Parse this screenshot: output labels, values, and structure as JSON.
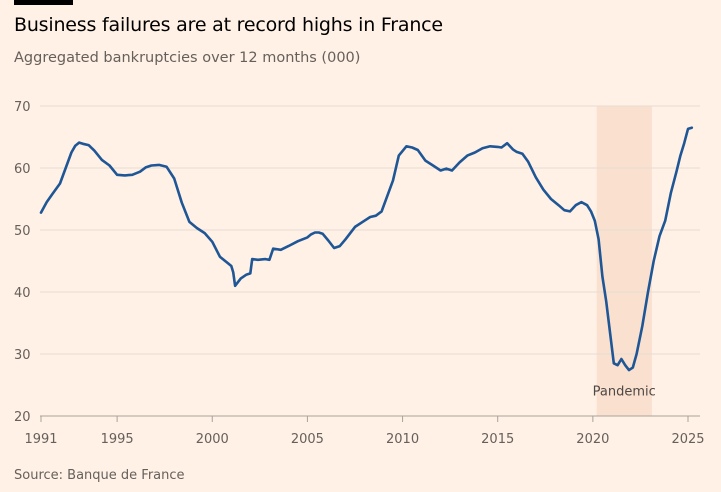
{
  "header": {
    "title": "Business failures are at record highs in France",
    "subtitle": "Aggregated bankruptcies over 12 months (000)"
  },
  "footer": {
    "source": "Source: Banque de France"
  },
  "colors": {
    "background": "#FFF1E5",
    "line": "#1F5696",
    "shade": "#FAE0CF",
    "grid": "#E7DCD2",
    "tick_text": "#66605C"
  },
  "chart_data": {
    "type": "line",
    "title": "Business failures are at record highs in France",
    "subtitle": "Aggregated bankruptcies over 12 months (000)",
    "xlabel": "",
    "ylabel": "",
    "xlim": [
      1991,
      2025.3
    ],
    "ylim": [
      20,
      70
    ],
    "grid": true,
    "x_ticks": [
      1991,
      1995,
      2000,
      2005,
      2010,
      2015,
      2020,
      2025
    ],
    "y_ticks": [
      20,
      30,
      40,
      50,
      60,
      70
    ],
    "shaded_region": {
      "x_start": 2020.2,
      "x_end": 2023.1,
      "label": "Pandemic"
    },
    "series": [
      {
        "x": [
          1991.0,
          1991.3,
          1991.6,
          1992.0,
          1992.3,
          1992.6,
          1992.8,
          1993.0,
          1993.2,
          1993.5,
          1993.8,
          1994.2,
          1994.6,
          1995.0,
          1995.4,
          1995.8,
          1996.2,
          1996.5,
          1996.8,
          1997.2,
          1997.6,
          1998.0,
          1998.4,
          1998.8,
          1999.2,
          1999.6,
          2000.0,
          2000.4,
          2000.8,
          2001.0,
          2001.1,
          2001.2,
          2001.5,
          2001.8,
          2002.0,
          2002.1,
          2002.4,
          2002.8,
          2003.0,
          2003.2,
          2003.6,
          2004.0,
          2004.5,
          2005.0,
          2005.2,
          2005.4,
          2005.6,
          2005.8,
          2006.1,
          2006.4,
          2006.7,
          2007.0,
          2007.5,
          2008.0,
          2008.3,
          2008.6,
          2008.9,
          2009.2,
          2009.5,
          2009.8,
          2010.2,
          2010.5,
          2010.8,
          2011.2,
          2011.6,
          2012.0,
          2012.3,
          2012.6,
          2013.0,
          2013.4,
          2013.8,
          2014.2,
          2014.6,
          2015.0,
          2015.2,
          2015.5,
          2015.8,
          2016.0,
          2016.3,
          2016.6,
          2017.0,
          2017.4,
          2017.8,
          2018.2,
          2018.5,
          2018.8,
          2019.1,
          2019.4,
          2019.7,
          2019.9,
          2020.1,
          2020.3,
          2020.5,
          2020.7,
          2020.9,
          2021.1,
          2021.3,
          2021.5,
          2021.7,
          2021.9,
          2022.1,
          2022.3,
          2022.6,
          2022.9,
          2023.2,
          2023.5,
          2023.8,
          2024.1,
          2024.4,
          2024.6,
          2024.8,
          2025.0,
          2025.2
        ],
        "values": [
          52.8,
          54.5,
          55.8,
          57.5,
          60.0,
          62.5,
          63.6,
          64.1,
          63.9,
          63.7,
          62.8,
          61.3,
          60.4,
          58.9,
          58.8,
          58.9,
          59.4,
          60.1,
          60.4,
          60.5,
          60.2,
          58.3,
          54.4,
          51.3,
          50.3,
          49.5,
          48.1,
          45.7,
          44.7,
          44.2,
          43.2,
          41.0,
          42.2,
          42.8,
          43.0,
          45.3,
          45.2,
          45.3,
          45.2,
          47.0,
          46.8,
          47.4,
          48.2,
          48.8,
          49.3,
          49.6,
          49.6,
          49.4,
          48.3,
          47.1,
          47.4,
          48.5,
          50.5,
          51.5,
          52.1,
          52.3,
          53.0,
          55.5,
          58.0,
          62.0,
          63.5,
          63.3,
          62.9,
          61.2,
          60.4,
          59.6,
          59.9,
          59.6,
          60.9,
          62.0,
          62.5,
          63.2,
          63.5,
          63.4,
          63.3,
          64.0,
          63.0,
          62.6,
          62.3,
          61.0,
          58.5,
          56.5,
          55.0,
          54.0,
          53.2,
          53.0,
          54.0,
          54.5,
          54.0,
          53.0,
          51.5,
          48.5,
          42.5,
          38.5,
          33.5,
          28.5,
          28.2,
          29.2,
          28.2,
          27.4,
          27.8,
          30.0,
          34.5,
          40.0,
          45.0,
          49.0,
          51.5,
          56.0,
          59.5,
          62.0,
          64.0,
          66.3,
          66.5
        ]
      }
    ]
  }
}
